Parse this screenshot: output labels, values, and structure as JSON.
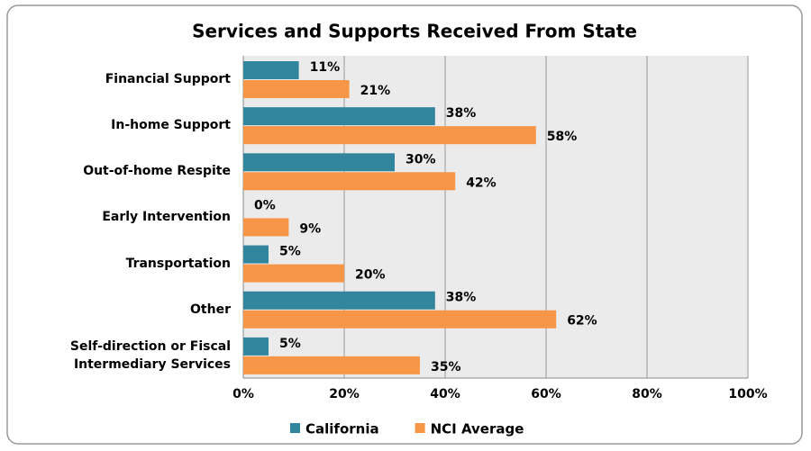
{
  "chart_data": {
    "type": "bar",
    "orientation": "horizontal",
    "title": "Services and Supports Received From State",
    "categories": [
      "Financial Support",
      "In-home Support",
      "Out-of-home Respite",
      "Early Intervention",
      "Transportation",
      "Other",
      "Self-direction or Fiscal Intermediary Services"
    ],
    "series": [
      {
        "name": "California",
        "color": "#31859c",
        "values": [
          11,
          38,
          30,
          0,
          5,
          38,
          5
        ],
        "value_labels": [
          "11%",
          "38%",
          "30%",
          "0%",
          "5%",
          "38%",
          "5%"
        ]
      },
      {
        "name": "NCI Average",
        "color": "#f79646",
        "values": [
          21,
          58,
          42,
          9,
          20,
          62,
          35
        ],
        "value_labels": [
          "21%",
          "58%",
          "42%",
          "9%",
          "20%",
          "62%",
          "35%"
        ]
      }
    ],
    "xlim": [
      0,
      100
    ],
    "xticks": [
      {
        "value": 0,
        "label": "0%"
      },
      {
        "value": 20,
        "label": "20%"
      },
      {
        "value": 40,
        "label": "40%"
      },
      {
        "value": 60,
        "label": "60%"
      },
      {
        "value": 80,
        "label": "80%"
      },
      {
        "value": 100,
        "label": "100%"
      }
    ],
    "grid": true,
    "legend": "bottom"
  }
}
